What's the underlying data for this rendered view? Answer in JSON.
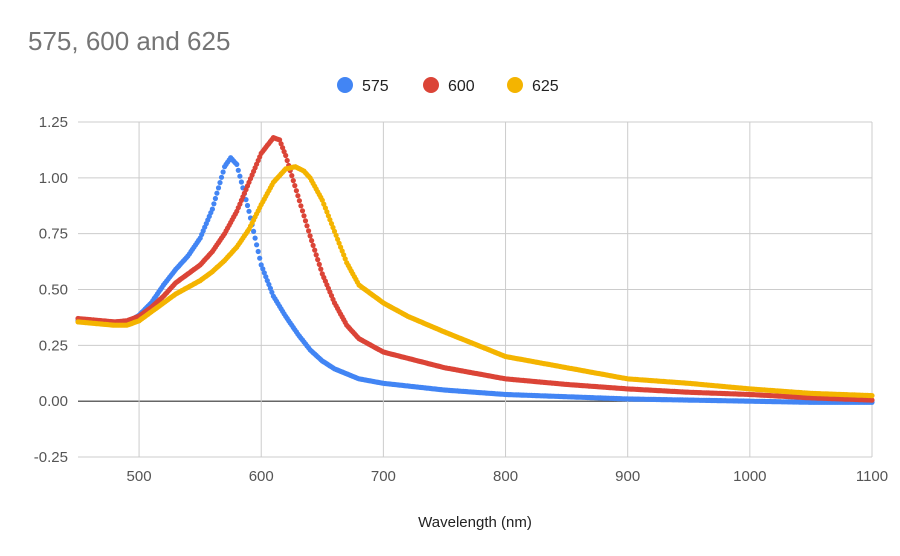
{
  "chart_data": {
    "type": "scatter",
    "title": "575, 600 and 625",
    "xlabel": "Wavelength (nm)",
    "ylabel": "",
    "xlim": [
      450,
      1100
    ],
    "ylim": [
      -0.25,
      1.25
    ],
    "x_ticks": [
      500,
      600,
      700,
      800,
      900,
      1000,
      1100
    ],
    "y_ticks": [
      -0.25,
      0.0,
      0.25,
      0.5,
      0.75,
      1.0,
      1.25
    ],
    "y_tick_labels": [
      "-0.25",
      "0.00",
      "0.25",
      "0.50",
      "0.75",
      "1.00",
      "1.25"
    ],
    "grid": true,
    "legend_position": "top-center",
    "series": [
      {
        "name": "575",
        "color": "#4285F4",
        "points": [
          [
            450,
            0.36
          ],
          [
            460,
            0.355
          ],
          [
            470,
            0.35
          ],
          [
            480,
            0.345
          ],
          [
            490,
            0.35
          ],
          [
            500,
            0.385
          ],
          [
            510,
            0.44
          ],
          [
            520,
            0.52
          ],
          [
            530,
            0.59
          ],
          [
            540,
            0.65
          ],
          [
            550,
            0.73
          ],
          [
            560,
            0.86
          ],
          [
            570,
            1.05
          ],
          [
            575,
            1.09
          ],
          [
            580,
            1.06
          ],
          [
            590,
            0.85
          ],
          [
            600,
            0.61
          ],
          [
            610,
            0.47
          ],
          [
            620,
            0.38
          ],
          [
            630,
            0.3
          ],
          [
            640,
            0.23
          ],
          [
            650,
            0.18
          ],
          [
            660,
            0.145
          ],
          [
            680,
            0.1
          ],
          [
            700,
            0.08
          ],
          [
            750,
            0.05
          ],
          [
            800,
            0.03
          ],
          [
            850,
            0.02
          ],
          [
            900,
            0.01
          ],
          [
            950,
            0.005
          ],
          [
            1000,
            0.0
          ],
          [
            1050,
            -0.005
          ],
          [
            1100,
            -0.005
          ]
        ]
      },
      {
        "name": "600",
        "color": "#DB4437",
        "points": [
          [
            450,
            0.37
          ],
          [
            460,
            0.365
          ],
          [
            470,
            0.36
          ],
          [
            480,
            0.355
          ],
          [
            490,
            0.36
          ],
          [
            500,
            0.38
          ],
          [
            510,
            0.42
          ],
          [
            520,
            0.47
          ],
          [
            530,
            0.53
          ],
          [
            540,
            0.57
          ],
          [
            550,
            0.61
          ],
          [
            560,
            0.67
          ],
          [
            570,
            0.75
          ],
          [
            580,
            0.85
          ],
          [
            590,
            0.98
          ],
          [
            600,
            1.11
          ],
          [
            610,
            1.18
          ],
          [
            615,
            1.17
          ],
          [
            620,
            1.1
          ],
          [
            630,
            0.92
          ],
          [
            640,
            0.74
          ],
          [
            650,
            0.57
          ],
          [
            660,
            0.44
          ],
          [
            670,
            0.34
          ],
          [
            680,
            0.28
          ],
          [
            700,
            0.22
          ],
          [
            750,
            0.15
          ],
          [
            800,
            0.1
          ],
          [
            850,
            0.075
          ],
          [
            900,
            0.055
          ],
          [
            950,
            0.04
          ],
          [
            1000,
            0.03
          ],
          [
            1050,
            0.015
          ],
          [
            1100,
            0.005
          ]
        ]
      },
      {
        "name": "625",
        "color": "#F4B400",
        "points": [
          [
            450,
            0.355
          ],
          [
            460,
            0.35
          ],
          [
            470,
            0.345
          ],
          [
            480,
            0.34
          ],
          [
            490,
            0.34
          ],
          [
            500,
            0.36
          ],
          [
            510,
            0.4
          ],
          [
            520,
            0.44
          ],
          [
            530,
            0.48
          ],
          [
            540,
            0.51
          ],
          [
            550,
            0.54
          ],
          [
            560,
            0.58
          ],
          [
            570,
            0.63
          ],
          [
            580,
            0.69
          ],
          [
            590,
            0.77
          ],
          [
            600,
            0.88
          ],
          [
            610,
            0.98
          ],
          [
            620,
            1.04
          ],
          [
            628,
            1.05
          ],
          [
            635,
            1.03
          ],
          [
            640,
            1.0
          ],
          [
            650,
            0.9
          ],
          [
            660,
            0.76
          ],
          [
            670,
            0.62
          ],
          [
            680,
            0.52
          ],
          [
            690,
            0.48
          ],
          [
            700,
            0.44
          ],
          [
            720,
            0.38
          ],
          [
            750,
            0.31
          ],
          [
            800,
            0.2
          ],
          [
            850,
            0.15
          ],
          [
            900,
            0.1
          ],
          [
            950,
            0.08
          ],
          [
            1000,
            0.055
          ],
          [
            1050,
            0.035
          ],
          [
            1100,
            0.025
          ]
        ]
      }
    ]
  }
}
